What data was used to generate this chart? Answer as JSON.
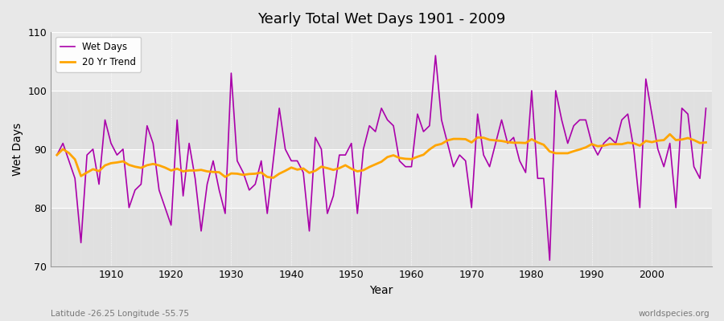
{
  "title": "Yearly Total Wet Days 1901 - 2009",
  "xlabel": "Year",
  "ylabel": "Wet Days",
  "footnote_left": "Latitude -26.25 Longitude -55.75",
  "footnote_right": "worldspecies.org",
  "wet_days_color": "#aa00aa",
  "trend_color": "#FFA500",
  "ylim": [
    70,
    110
  ],
  "yticks": [
    70,
    80,
    90,
    100,
    110
  ],
  "years": [
    1901,
    1902,
    1903,
    1904,
    1905,
    1906,
    1907,
    1908,
    1909,
    1910,
    1911,
    1912,
    1913,
    1914,
    1915,
    1916,
    1917,
    1918,
    1919,
    1920,
    1921,
    1922,
    1923,
    1924,
    1925,
    1926,
    1927,
    1928,
    1929,
    1930,
    1931,
    1932,
    1933,
    1934,
    1935,
    1936,
    1937,
    1938,
    1939,
    1940,
    1941,
    1942,
    1943,
    1944,
    1945,
    1946,
    1947,
    1948,
    1949,
    1950,
    1951,
    1952,
    1953,
    1954,
    1955,
    1956,
    1957,
    1958,
    1959,
    1960,
    1961,
    1962,
    1963,
    1964,
    1965,
    1966,
    1967,
    1968,
    1969,
    1970,
    1971,
    1972,
    1973,
    1974,
    1975,
    1976,
    1977,
    1978,
    1979,
    1980,
    1981,
    1982,
    1983,
    1984,
    1985,
    1986,
    1987,
    1988,
    1989,
    1990,
    1991,
    1992,
    1993,
    1994,
    1995,
    1996,
    1997,
    1998,
    1999,
    2000,
    2001,
    2002,
    2003,
    2004,
    2005,
    2006,
    2007,
    2008,
    2009
  ],
  "wet_days": [
    89,
    91,
    88,
    85,
    74,
    89,
    90,
    84,
    95,
    91,
    89,
    90,
    80,
    83,
    84,
    94,
    91,
    83,
    80,
    77,
    95,
    82,
    91,
    85,
    76,
    84,
    88,
    83,
    79,
    103,
    88,
    86,
    83,
    84,
    88,
    79,
    88,
    97,
    90,
    88,
    88,
    86,
    76,
    92,
    90,
    79,
    82,
    89,
    89,
    91,
    79,
    90,
    94,
    93,
    97,
    95,
    94,
    88,
    87,
    87,
    96,
    93,
    94,
    106,
    95,
    91,
    87,
    89,
    88,
    80,
    96,
    89,
    87,
    91,
    95,
    91,
    92,
    88,
    86,
    100,
    85,
    85,
    71,
    100,
    95,
    91,
    94,
    95,
    95,
    91,
    89,
    91,
    92,
    91,
    95,
    96,
    90,
    80,
    102,
    96,
    90,
    87,
    91,
    80,
    97,
    96,
    87,
    85,
    97
  ],
  "band_colors": [
    "#e0e0e0",
    "#ebebeb"
  ],
  "fig_facecolor": "#e8e8e8"
}
